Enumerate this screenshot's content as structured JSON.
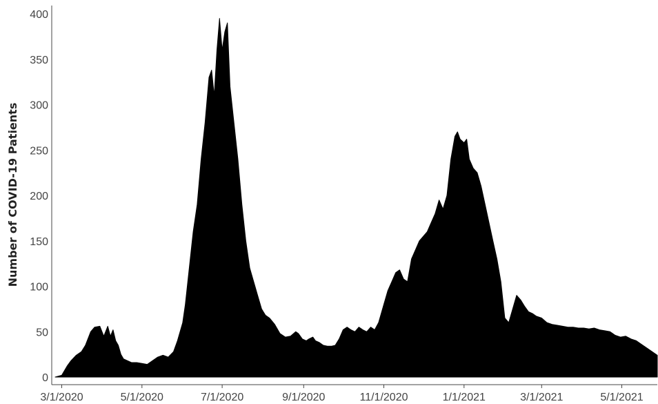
{
  "chart_data": {
    "type": "area",
    "title": "",
    "xlabel": "",
    "ylabel": "Number of COVID-19 Patients",
    "ylim": [
      0,
      400
    ],
    "y_ticks": [
      "0",
      "50",
      "100",
      "150",
      "200",
      "250",
      "300",
      "350",
      "400"
    ],
    "x_ticks": [
      "3/1/2020",
      "5/1/2020",
      "7/1/2020",
      "9/1/2020",
      "11/1/2020",
      "1/1/2021",
      "3/1/2021",
      "5/1/2021"
    ],
    "x_range": [
      "2020-02-25",
      "2021-05-28"
    ],
    "grid": false,
    "legend": "none",
    "fill_color": "#000000",
    "series": [
      {
        "x": [
          "2020-02-25",
          "2020-03-01",
          "2020-03-05",
          "2020-03-08",
          "2020-03-12",
          "2020-03-16",
          "2020-03-19",
          "2020-03-23",
          "2020-03-26",
          "2020-03-30",
          "2020-04-02",
          "2020-04-05",
          "2020-04-07",
          "2020-04-09",
          "2020-04-11",
          "2020-04-13",
          "2020-04-15",
          "2020-04-17",
          "2020-04-20",
          "2020-04-23",
          "2020-04-27",
          "2020-05-01",
          "2020-05-05",
          "2020-05-09",
          "2020-05-13",
          "2020-05-17",
          "2020-05-21",
          "2020-05-25",
          "2020-05-28",
          "2020-06-01",
          "2020-06-03",
          "2020-06-06",
          "2020-06-09",
          "2020-06-12",
          "2020-06-15",
          "2020-06-18",
          "2020-06-21",
          "2020-06-23",
          "2020-06-25",
          "2020-06-27",
          "2020-06-29",
          "2020-07-01",
          "2020-07-03",
          "2020-07-05",
          "2020-07-07",
          "2020-07-10",
          "2020-07-13",
          "2020-07-16",
          "2020-07-19",
          "2020-07-22",
          "2020-07-25",
          "2020-07-28",
          "2020-07-31",
          "2020-08-03",
          "2020-08-06",
          "2020-08-10",
          "2020-08-14",
          "2020-08-18",
          "2020-08-22",
          "2020-08-26",
          "2020-08-28",
          "2020-08-31",
          "2020-09-03",
          "2020-09-05",
          "2020-09-08",
          "2020-09-10",
          "2020-09-13",
          "2020-09-16",
          "2020-09-19",
          "2020-09-22",
          "2020-09-25",
          "2020-09-28",
          "2020-10-01",
          "2020-10-04",
          "2020-10-07",
          "2020-10-10",
          "2020-10-13",
          "2020-10-16",
          "2020-10-19",
          "2020-10-22",
          "2020-10-25",
          "2020-10-28",
          "2020-11-01",
          "2020-11-04",
          "2020-11-07",
          "2020-11-10",
          "2020-11-13",
          "2020-11-16",
          "2020-11-19",
          "2020-11-22",
          "2020-11-25",
          "2020-11-28",
          "2020-12-01",
          "2020-12-04",
          "2020-12-07",
          "2020-12-10",
          "2020-12-13",
          "2020-12-16",
          "2020-12-19",
          "2020-12-22",
          "2020-12-25",
          "2020-12-27",
          "2020-12-29",
          "2021-01-01",
          "2021-01-03",
          "2021-01-05",
          "2021-01-08",
          "2021-01-11",
          "2021-01-14",
          "2021-01-17",
          "2021-01-20",
          "2021-01-23",
          "2021-01-26",
          "2021-01-29",
          "2021-02-01",
          "2021-02-04",
          "2021-02-07",
          "2021-02-10",
          "2021-02-13",
          "2021-02-16",
          "2021-02-19",
          "2021-02-22",
          "2021-02-25",
          "2021-03-01",
          "2021-03-05",
          "2021-03-09",
          "2021-03-13",
          "2021-03-17",
          "2021-03-21",
          "2021-03-25",
          "2021-03-29",
          "2021-04-02",
          "2021-04-06",
          "2021-04-10",
          "2021-04-14",
          "2021-04-18",
          "2021-04-22",
          "2021-04-26",
          "2021-04-30",
          "2021-05-04",
          "2021-05-08",
          "2021-05-12",
          "2021-05-16",
          "2021-05-20",
          "2021-05-24",
          "2021-05-28"
        ],
        "values": [
          0,
          2,
          12,
          18,
          24,
          28,
          35,
          50,
          55,
          56,
          45,
          56,
          45,
          52,
          40,
          35,
          25,
          20,
          18,
          16,
          16,
          15,
          14,
          18,
          22,
          24,
          22,
          28,
          40,
          60,
          80,
          120,
          160,
          190,
          240,
          280,
          330,
          338,
          310,
          360,
          395,
          360,
          380,
          390,
          320,
          280,
          240,
          190,
          150,
          120,
          105,
          90,
          75,
          68,
          65,
          58,
          48,
          44,
          45,
          50,
          48,
          42,
          40,
          42,
          44,
          40,
          38,
          35,
          34,
          34,
          35,
          42,
          52,
          55,
          52,
          50,
          55,
          52,
          50,
          55,
          52,
          60,
          80,
          95,
          105,
          115,
          118,
          108,
          105,
          130,
          140,
          150,
          155,
          160,
          170,
          180,
          195,
          185,
          200,
          240,
          265,
          270,
          262,
          258,
          262,
          240,
          230,
          225,
          210,
          190,
          170,
          150,
          130,
          105,
          65,
          60,
          75,
          90,
          85,
          78,
          72,
          70,
          67,
          65,
          60,
          58,
          57,
          56,
          55,
          55,
          54,
          54,
          53,
          54,
          52,
          51,
          50,
          46,
          44,
          45,
          42,
          40,
          36,
          32,
          28,
          24
        ]
      }
    ]
  }
}
